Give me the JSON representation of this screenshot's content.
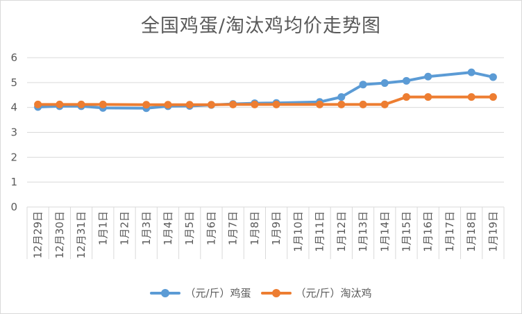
{
  "chart_data": {
    "type": "line",
    "title": "全国鸡蛋/淘汰鸡均价走势图",
    "categories": [
      "12月29日",
      "12月30日",
      "12月31日",
      "1月1日",
      "1月2日",
      "1月3日",
      "1月4日",
      "1月5日",
      "1月6日",
      "1月7日",
      "1月8日",
      "1月9日",
      "1月10日",
      "1月11日",
      "1月12日",
      "1月13日",
      "1月14日",
      "1月15日",
      "1月16日",
      "1月17日",
      "1月18日",
      "1月19日"
    ],
    "series": [
      {
        "name": "（元/斤）鸡蛋",
        "color": "#5b9bd5",
        "values": [
          4.02,
          4.05,
          4.05,
          3.98,
          null,
          3.97,
          4.05,
          4.06,
          4.1,
          4.14,
          4.17,
          4.18,
          null,
          4.22,
          4.42,
          4.92,
          4.98,
          5.07,
          5.24,
          null,
          5.41,
          5.22
        ]
      },
      {
        "name": "（元/斤）淘汰鸡",
        "color": "#ed7d31",
        "values": [
          4.12,
          4.12,
          4.12,
          4.12,
          null,
          4.11,
          4.11,
          4.11,
          4.11,
          4.12,
          4.12,
          4.12,
          null,
          4.12,
          4.12,
          4.12,
          4.12,
          4.42,
          4.42,
          null,
          4.42,
          4.42
        ]
      }
    ],
    "yticks": [
      "0",
      "1",
      "2",
      "3",
      "4",
      "5",
      "6"
    ],
    "ylim": [
      0,
      6
    ],
    "grid": true,
    "legend": "bottom"
  }
}
